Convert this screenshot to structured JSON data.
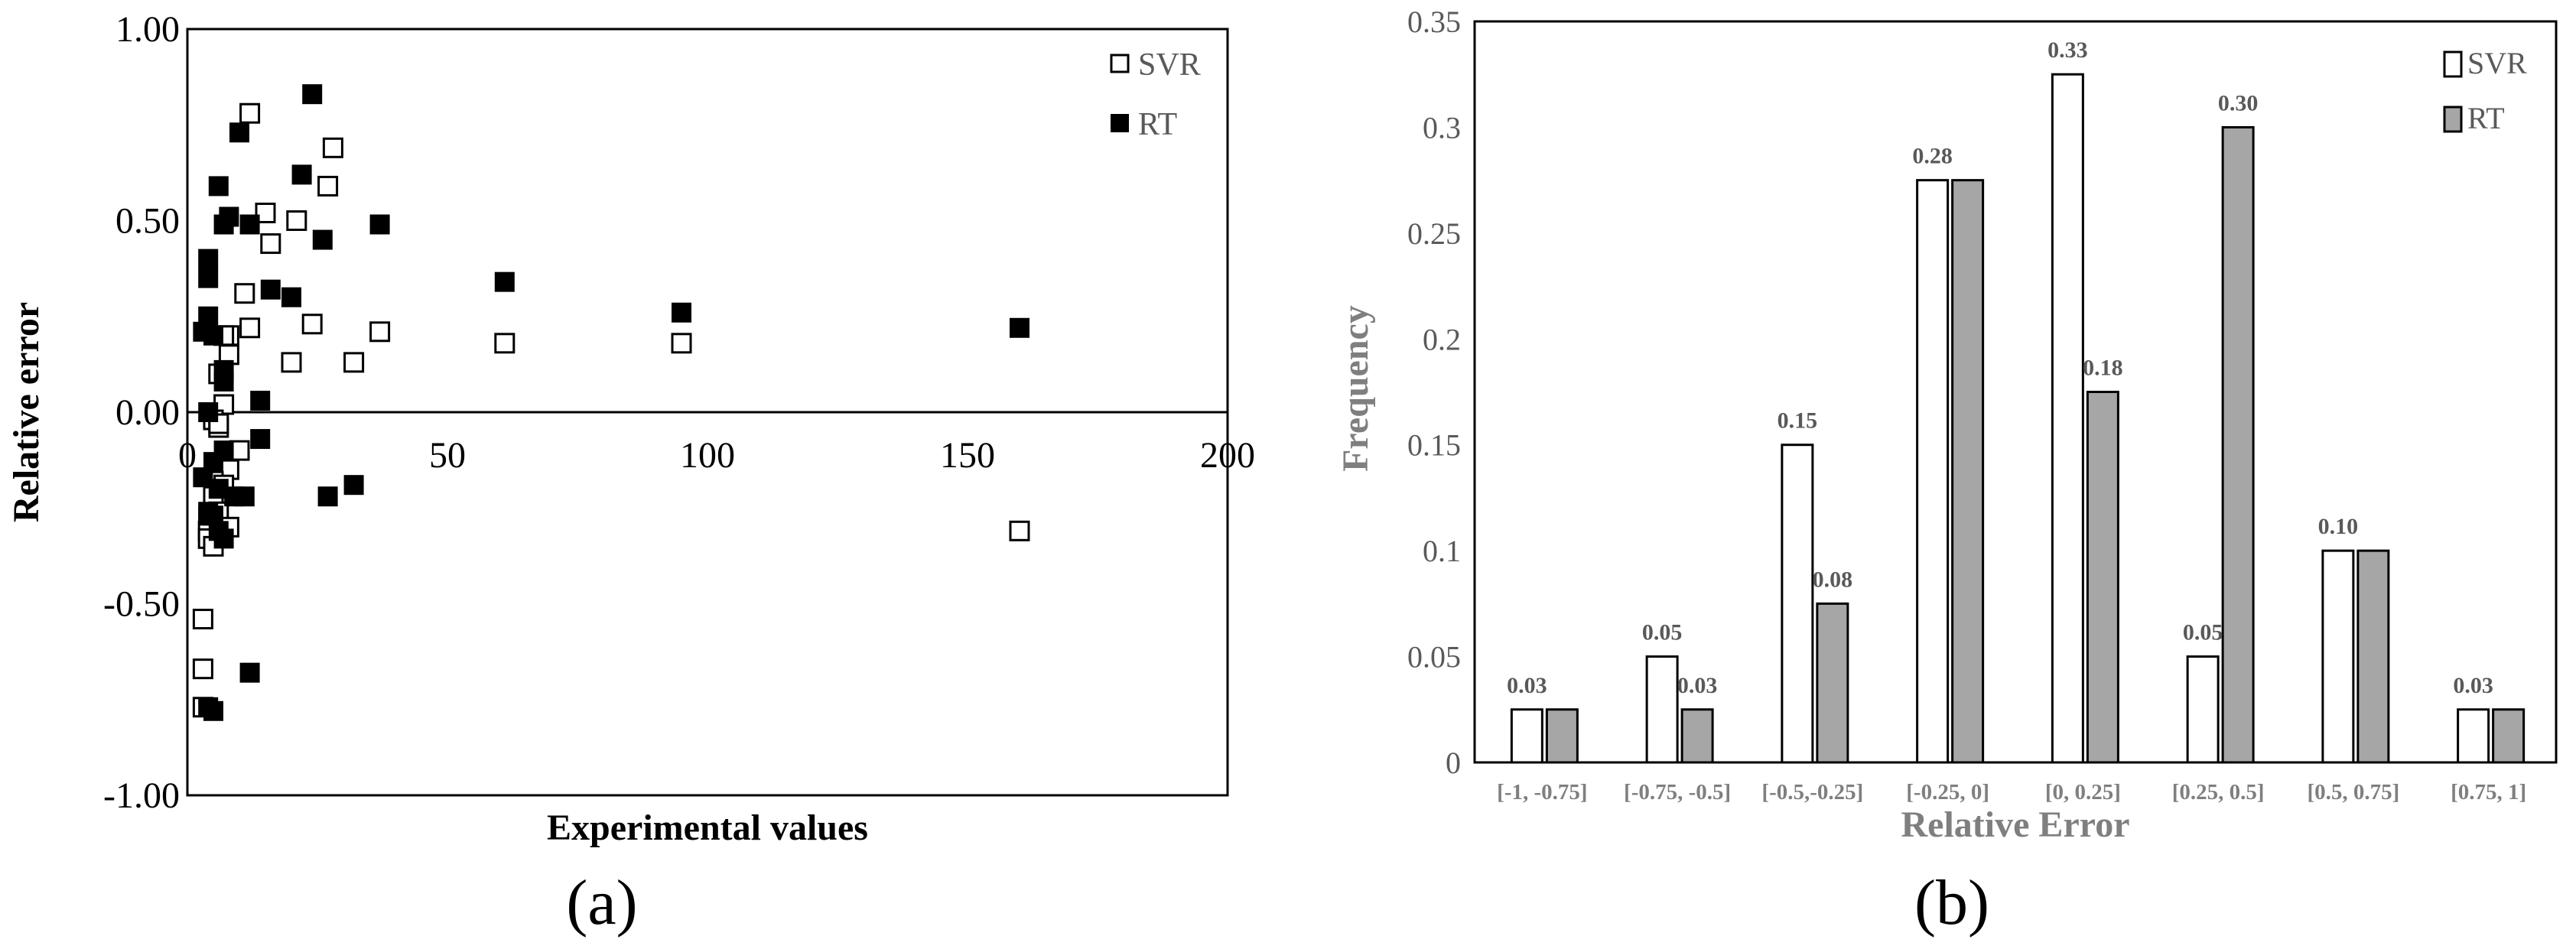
{
  "panels": {
    "a": {
      "label": "(a)"
    },
    "b": {
      "label": "(b)"
    }
  },
  "colors": {
    "svr_fill": "#ffffff",
    "rt_scatter_fill": "#000000",
    "rt_bar_fill": "#a6a6a6",
    "axis": "#000000",
    "tick_text_b": "#595959",
    "axis_title_b": "#7f7f7f"
  },
  "chart_data": [
    {
      "type": "scatter",
      "title": "",
      "xlabel": "Experimental values",
      "ylabel": "Relative error",
      "xlim": [
        0,
        200
      ],
      "ylim": [
        -1.0,
        1.0
      ],
      "x_ticks": [
        "0",
        "50",
        "100",
        "150",
        "200"
      ],
      "y_ticks": [
        "1.00",
        "0.50",
        "0.00",
        "-0.50",
        "-1.00"
      ],
      "legend_position": "top-right",
      "grid": false,
      "series": [
        {
          "name": "SVR",
          "marker": "hollow-square",
          "points": [
            [
              12,
              0.78
            ],
            [
              28,
              0.69
            ],
            [
              27,
              0.59
            ],
            [
              15,
              0.52
            ],
            [
              21,
              0.5
            ],
            [
              16,
              0.44
            ],
            [
              11,
              0.31
            ],
            [
              12,
              0.22
            ],
            [
              24,
              0.23
            ],
            [
              8,
              0.2
            ],
            [
              37,
              0.21
            ],
            [
              7,
              0.2
            ],
            [
              8,
              0.15
            ],
            [
              6,
              0.1
            ],
            [
              20,
              0.13
            ],
            [
              32,
              0.13
            ],
            [
              61,
              0.18
            ],
            [
              95,
              0.18
            ],
            [
              7,
              0.02
            ],
            [
              5,
              -0.02
            ],
            [
              6,
              -0.04
            ],
            [
              6,
              -0.03
            ],
            [
              10,
              -0.1
            ],
            [
              6,
              -0.14
            ],
            [
              8,
              -0.15
            ],
            [
              5,
              -0.18
            ],
            [
              7,
              -0.19
            ],
            [
              5,
              -0.22
            ],
            [
              6,
              -0.26
            ],
            [
              8,
              -0.3
            ],
            [
              4,
              -0.31
            ],
            [
              4,
              -0.33
            ],
            [
              5,
              -0.35
            ],
            [
              3,
              -0.54
            ],
            [
              3,
              -0.67
            ],
            [
              3,
              -0.77
            ],
            [
              160,
              -0.31
            ]
          ]
        },
        {
          "name": "RT",
          "marker": "filled-square",
          "points": [
            [
              24,
              0.83
            ],
            [
              10,
              0.73
            ],
            [
              22,
              0.62
            ],
            [
              6,
              0.59
            ],
            [
              8,
              0.51
            ],
            [
              7,
              0.49
            ],
            [
              12,
              0.49
            ],
            [
              37,
              0.49
            ],
            [
              26,
              0.45
            ],
            [
              4,
              0.4
            ],
            [
              4,
              0.35
            ],
            [
              16,
              0.32
            ],
            [
              20,
              0.3
            ],
            [
              61,
              0.34
            ],
            [
              95,
              0.26
            ],
            [
              4,
              0.25
            ],
            [
              3,
              0.21
            ],
            [
              5,
              0.2
            ],
            [
              7,
              0.11
            ],
            [
              7,
              0.08
            ],
            [
              14,
              0.03
            ],
            [
              4,
              0.0
            ],
            [
              14,
              -0.07
            ],
            [
              7,
              -0.1
            ],
            [
              5,
              -0.13
            ],
            [
              3,
              -0.17
            ],
            [
              6,
              -0.2
            ],
            [
              9,
              -0.22
            ],
            [
              11,
              -0.22
            ],
            [
              27,
              -0.22
            ],
            [
              32,
              -0.19
            ],
            [
              4,
              -0.26
            ],
            [
              4,
              -0.27
            ],
            [
              5,
              -0.27
            ],
            [
              6,
              -0.31
            ],
            [
              7,
              -0.33
            ],
            [
              12,
              -0.68
            ],
            [
              4,
              -0.77
            ],
            [
              5,
              -0.78
            ],
            [
              160,
              0.22
            ]
          ]
        }
      ]
    },
    {
      "type": "bar",
      "title": "",
      "xlabel": "Relative Error",
      "ylabel": "Frequency",
      "ylim": [
        0,
        0.35
      ],
      "y_ticks": [
        "0",
        "0.05",
        "0.1",
        "0.15",
        "0.2",
        "0.25",
        "0.3",
        "0.35"
      ],
      "legend_position": "top-right",
      "grid": false,
      "categories": [
        "[-1, -0.75]",
        "[-0.75, -0.5]",
        "[-0.5,-0.25]",
        "[-0.25, 0]",
        "[0, 0.25]",
        "[0.25, 0.5]",
        "[0.5, 0.75]",
        "[0.75, 1]"
      ],
      "series": [
        {
          "name": "SVR",
          "values": [
            0.025,
            0.05,
            0.15,
            0.275,
            0.325,
            0.05,
            0.1,
            0.025
          ]
        },
        {
          "name": "RT",
          "values": [
            0.025,
            0.025,
            0.075,
            0.275,
            0.175,
            0.3,
            0.1,
            0.025
          ]
        }
      ],
      "data_labels": [
        {
          "category": 0,
          "series": 0,
          "text": "0.03"
        },
        {
          "category": 1,
          "series": 0,
          "text": "0.05"
        },
        {
          "category": 1,
          "series": 1,
          "text": "0.03"
        },
        {
          "category": 2,
          "series": 0,
          "text": "0.15"
        },
        {
          "category": 2,
          "series": 1,
          "text": "0.08"
        },
        {
          "category": 3,
          "series": 0,
          "text": "0.28"
        },
        {
          "category": 4,
          "series": 0,
          "text": "0.33"
        },
        {
          "category": 4,
          "series": 1,
          "text": "0.18"
        },
        {
          "category": 5,
          "series": 0,
          "text": "0.05"
        },
        {
          "category": 5,
          "series": 1,
          "text": "0.30"
        },
        {
          "category": 6,
          "series": 0,
          "text": "0.10"
        },
        {
          "category": 7,
          "series": 0,
          "text": "0.03"
        }
      ]
    }
  ]
}
